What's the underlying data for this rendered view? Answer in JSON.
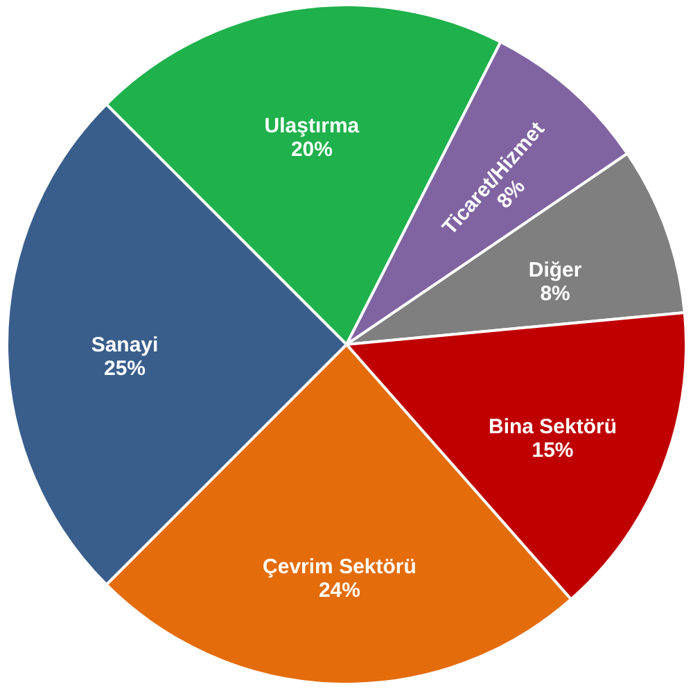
{
  "chart_data": {
    "type": "pie",
    "categories": [
      "Ulaştırma",
      "Ticaret/Hizmet",
      "Diğer",
      "Bina Sektörü",
      "Çevrim Sektörü",
      "Sanayi"
    ],
    "values": [
      20,
      8,
      8,
      15,
      24,
      25
    ],
    "value_labels": [
      "20%",
      "8%",
      "8%",
      "15%",
      "24%",
      "25%"
    ],
    "colors": [
      "#1fb14c",
      "#8064a2",
      "#7f7f7f",
      "#c00000",
      "#e46c0a",
      "#395e8c"
    ],
    "legend": false
  }
}
